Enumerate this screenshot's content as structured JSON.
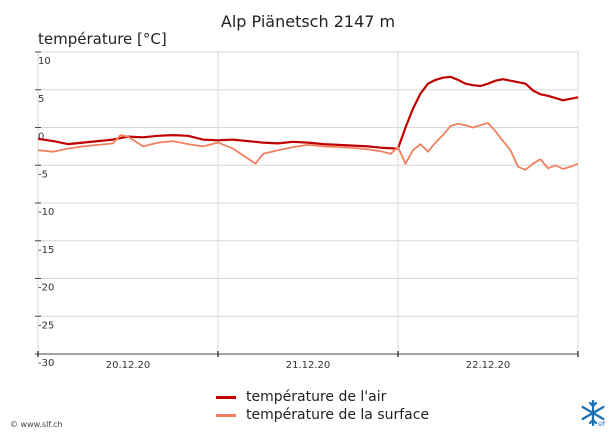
{
  "title": "Alp Piänetsch 2147 m",
  "ylabel": "température [°C]",
  "credit": "© www.slf.ch",
  "colors": {
    "air": "#c00000",
    "surface": "#f08060",
    "grid": "#d8d8d8",
    "axis": "#444444",
    "logo": "#1a6fb5"
  },
  "chart_data": {
    "type": "line",
    "ylim": [
      -30,
      10
    ],
    "yticks": [
      10,
      5,
      0,
      -5,
      -10,
      -15,
      -20,
      -25,
      -30
    ],
    "ytick_labels": [
      "10",
      "5",
      "0",
      "-5",
      "-10",
      "-15",
      "-20",
      "-25",
      "-30"
    ],
    "xlim": [
      0,
      72
    ],
    "xticks": [
      12,
      36,
      60
    ],
    "xtick_labels": [
      "20.12.20",
      "21.12.20",
      "22.12.20"
    ],
    "xgrid": [
      24,
      48
    ],
    "grid": true,
    "legend": "bottom-center",
    "series": [
      {
        "name": "température de l'air",
        "color": "#c00000",
        "x": [
          0,
          2,
          4,
          6,
          8,
          10,
          12,
          14,
          16,
          18,
          20,
          22,
          24,
          26,
          28,
          30,
          32,
          34,
          36,
          38,
          40,
          42,
          44,
          46,
          48,
          49,
          50,
          51,
          52,
          53,
          54,
          55,
          56,
          57,
          58,
          59,
          60,
          61,
          62,
          63,
          64,
          65,
          66,
          67,
          68,
          69,
          70,
          71,
          72
        ],
        "y": [
          -1.5,
          -1.8,
          -2.2,
          -2.0,
          -1.8,
          -1.6,
          -1.2,
          -1.3,
          -1.1,
          -1.0,
          -1.1,
          -1.6,
          -1.7,
          -1.6,
          -1.8,
          -2.0,
          -2.1,
          -1.9,
          -2.0,
          -2.2,
          -2.3,
          -2.4,
          -2.5,
          -2.7,
          -2.8,
          0.0,
          2.5,
          4.5,
          5.8,
          6.3,
          6.6,
          6.7,
          6.3,
          5.8,
          5.6,
          5.5,
          5.8,
          6.2,
          6.4,
          6.2,
          6.0,
          5.8,
          4.9,
          4.4,
          4.2,
          3.9,
          3.6,
          3.8,
          4.0
        ]
      },
      {
        "name": "température de la surface",
        "color": "#f08060",
        "x": [
          0,
          2,
          4,
          6,
          8,
          10,
          11,
          12,
          14,
          16,
          18,
          20,
          22,
          24,
          26,
          29,
          30,
          32,
          34,
          36,
          38,
          40,
          42,
          44,
          46,
          47,
          48,
          49,
          50,
          51,
          52,
          53,
          54,
          55,
          56,
          57,
          58,
          59,
          60,
          61,
          62,
          63,
          64,
          65,
          66,
          67,
          68,
          69,
          70,
          71,
          72
        ],
        "y": [
          -3.0,
          -3.2,
          -2.8,
          -2.5,
          -2.3,
          -2.1,
          -1.0,
          -1.2,
          -2.5,
          -2.0,
          -1.8,
          -2.2,
          -2.5,
          -2.0,
          -2.8,
          -4.8,
          -3.5,
          -3.0,
          -2.6,
          -2.3,
          -2.5,
          -2.6,
          -2.7,
          -2.9,
          -3.2,
          -3.5,
          -2.6,
          -4.8,
          -3.0,
          -2.2,
          -3.2,
          -2.0,
          -1.0,
          0.2,
          0.5,
          0.3,
          0.0,
          0.3,
          0.6,
          -0.5,
          -1.8,
          -3.0,
          -5.2,
          -5.6,
          -4.8,
          -4.2,
          -5.4,
          -5.0,
          -5.5,
          -5.2,
          -4.8
        ]
      }
    ]
  }
}
